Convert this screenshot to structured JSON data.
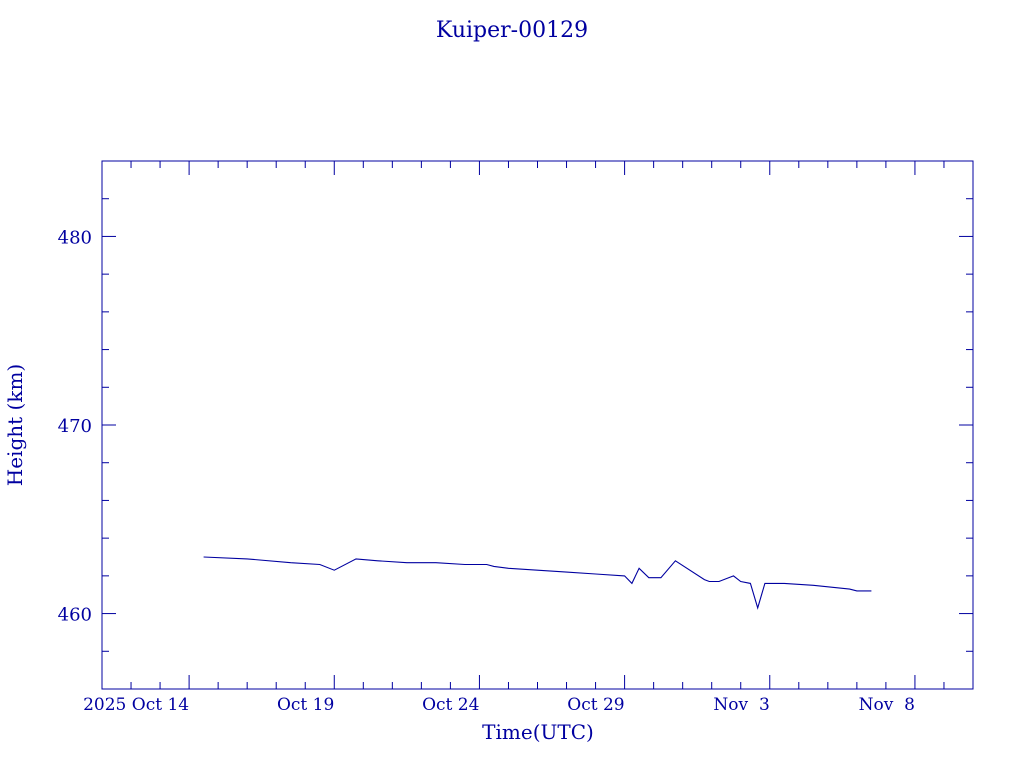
{
  "chart_data": {
    "type": "line",
    "title": "Kuiper-00129",
    "xlabel": "Time(UTC)",
    "ylabel": "Height (km)",
    "x_tick_labels": [
      "2025 Oct 14",
      "Oct 19",
      "Oct 24",
      "Oct 29",
      "Nov  3",
      "Nov  8"
    ],
    "y_tick_labels": [
      "460",
      "470",
      "480"
    ],
    "xlim": [
      "2025-10-11T00:00",
      "2025-11-10T00:00"
    ],
    "ylim": [
      456,
      484
    ],
    "grid": false,
    "series": [
      {
        "x": [
          "2025-10-14T12:00",
          "2025-10-16T00:00",
          "2025-10-17T12:00",
          "2025-10-18T12:00",
          "2025-10-19T00:00",
          "2025-10-19T18:00",
          "2025-10-20T12:00",
          "2025-10-21T12:00",
          "2025-10-22T12:00",
          "2025-10-23T12:00",
          "2025-10-24T06:00",
          "2025-10-24T12:00",
          "2025-10-25T00:00",
          "2025-10-26T00:00",
          "2025-10-27T00:00",
          "2025-10-28T00:00",
          "2025-10-29T00:00",
          "2025-10-29T06:00",
          "2025-10-29T12:00",
          "2025-10-29T20:00",
          "2025-10-30T06:00",
          "2025-10-30T18:00",
          "2025-10-31T18:00",
          "2025-10-31T22:00",
          "2025-11-01T06:00",
          "2025-11-01T18:00",
          "2025-11-02T00:00",
          "2025-11-02T08:00",
          "2025-11-02T14:00",
          "2025-11-02T20:00",
          "2025-11-03T12:00",
          "2025-11-04T12:00",
          "2025-11-05T18:00",
          "2025-11-06T00:00",
          "2025-11-06T12:00"
        ],
        "values": [
          463.0,
          462.9,
          462.7,
          462.6,
          462.3,
          462.9,
          462.8,
          462.7,
          462.7,
          462.6,
          462.6,
          462.5,
          462.4,
          462.3,
          462.2,
          462.1,
          462.0,
          461.6,
          462.4,
          461.9,
          461.9,
          462.8,
          461.8,
          461.7,
          461.7,
          462.0,
          461.7,
          461.6,
          460.3,
          461.6,
          461.6,
          461.5,
          461.3,
          461.2,
          461.2
        ]
      }
    ]
  }
}
